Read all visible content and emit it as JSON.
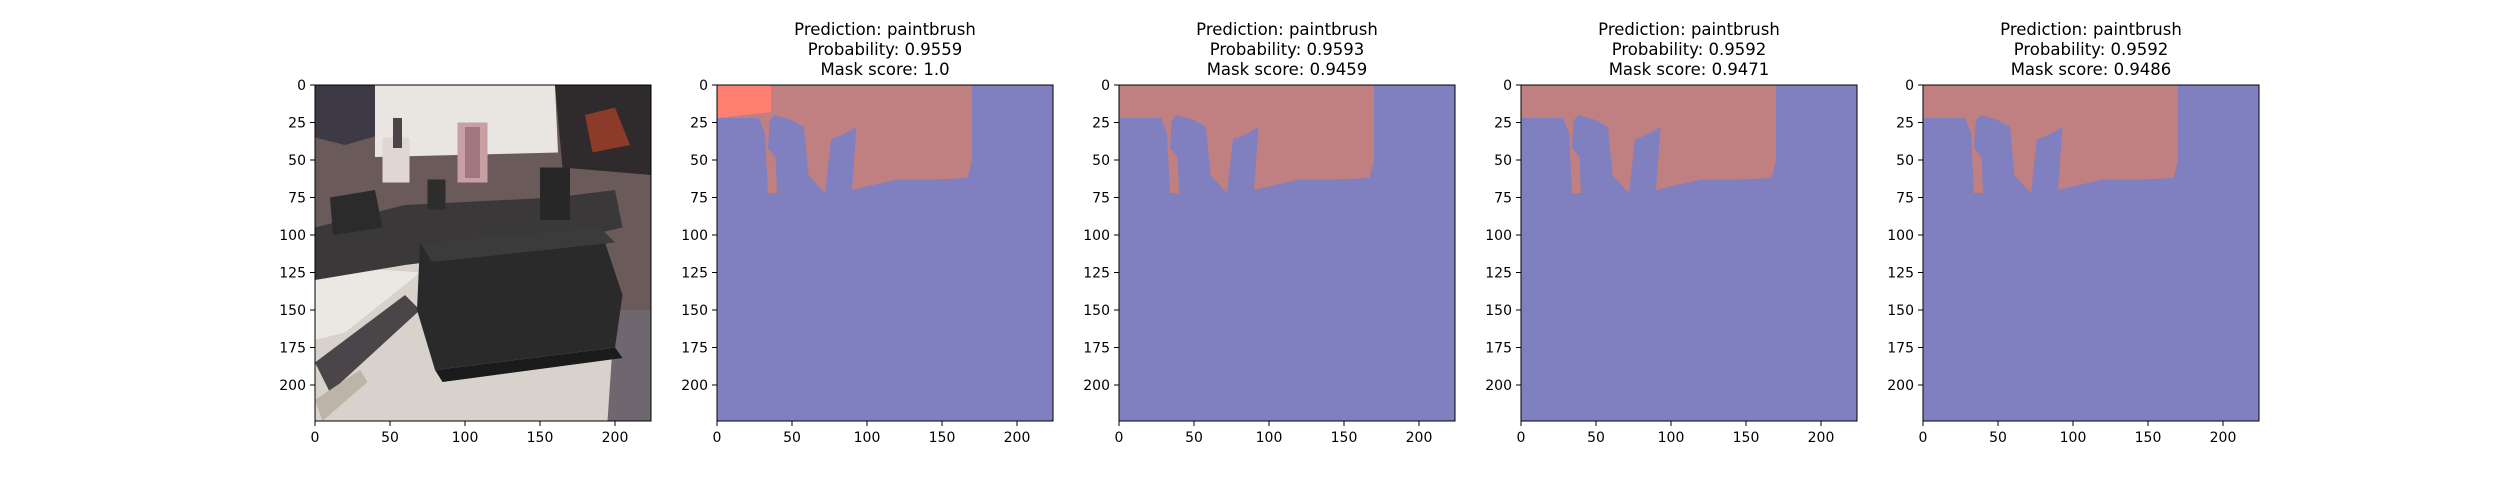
{
  "chart_data": [
    {
      "type": "image",
      "image_subject": "photo-model-train",
      "title_lines": [],
      "xlim": [
        0,
        224
      ],
      "ylim": [
        224,
        0
      ],
      "x_ticks": [
        0,
        50,
        100,
        150,
        200
      ],
      "y_ticks": [
        0,
        25,
        50,
        75,
        100,
        125,
        150,
        175,
        200
      ]
    },
    {
      "type": "heatmap",
      "title_lines": [
        "Prediction: paintbrush",
        "Probability: 0.9559",
        "Mask score: 1.0"
      ],
      "prediction": "paintbrush",
      "probability": 0.9559,
      "mask_score": 1.0,
      "xlim": [
        0,
        224
      ],
      "ylim": [
        224,
        0
      ],
      "x_ticks": [
        0,
        50,
        100,
        150,
        200
      ],
      "y_ticks": [
        0,
        25,
        50,
        75,
        100,
        125,
        150,
        175,
        200
      ],
      "background_color": "#8080c0",
      "mask_color": "#c07f80",
      "mask_region": [
        [
          0,
          0
        ],
        [
          170,
          0
        ],
        [
          170,
          50
        ],
        [
          167,
          62
        ],
        [
          145,
          63
        ],
        [
          120,
          63
        ],
        [
          98,
          68
        ],
        [
          90,
          70
        ],
        [
          93,
          28
        ],
        [
          82,
          34
        ],
        [
          76,
          36
        ],
        [
          72,
          72
        ],
        [
          68,
          68
        ],
        [
          61,
          60
        ],
        [
          58,
          28
        ],
        [
          49,
          23
        ],
        [
          38,
          20
        ],
        [
          35,
          24
        ],
        [
          34,
          42
        ],
        [
          39,
          48
        ],
        [
          40,
          72
        ],
        [
          34,
          72
        ],
        [
          32,
          32
        ],
        [
          28,
          22
        ],
        [
          0,
          22
        ]
      ],
      "highlight_color": "#ff8070",
      "highlight_region": [
        [
          0,
          0
        ],
        [
          36,
          0
        ],
        [
          36,
          18
        ],
        [
          0,
          22
        ]
      ]
    },
    {
      "type": "heatmap",
      "title_lines": [
        "Prediction: paintbrush",
        "Probability: 0.9593",
        "Mask score: 0.9459"
      ],
      "prediction": "paintbrush",
      "probability": 0.9593,
      "mask_score": 0.9459,
      "xlim": [
        0,
        224
      ],
      "ylim": [
        224,
        0
      ],
      "x_ticks": [
        0,
        50,
        100,
        150,
        200
      ],
      "y_ticks": [
        0,
        25,
        50,
        75,
        100,
        125,
        150,
        175,
        200
      ],
      "background_color": "#8080c0",
      "mask_color": "#c07f80",
      "mask_region": [
        [
          0,
          0
        ],
        [
          170,
          0
        ],
        [
          170,
          50
        ],
        [
          167,
          62
        ],
        [
          145,
          63
        ],
        [
          120,
          63
        ],
        [
          98,
          68
        ],
        [
          90,
          70
        ],
        [
          93,
          28
        ],
        [
          82,
          34
        ],
        [
          76,
          36
        ],
        [
          72,
          72
        ],
        [
          68,
          68
        ],
        [
          61,
          60
        ],
        [
          58,
          28
        ],
        [
          49,
          23
        ],
        [
          38,
          20
        ],
        [
          35,
          24
        ],
        [
          34,
          42
        ],
        [
          39,
          48
        ],
        [
          40,
          72
        ],
        [
          34,
          72
        ],
        [
          32,
          32
        ],
        [
          28,
          22
        ],
        [
          0,
          22
        ]
      ]
    },
    {
      "type": "heatmap",
      "title_lines": [
        "Prediction: paintbrush",
        "Probability: 0.9592",
        "Mask score: 0.9471"
      ],
      "prediction": "paintbrush",
      "probability": 0.9592,
      "mask_score": 0.9471,
      "xlim": [
        0,
        224
      ],
      "ylim": [
        224,
        0
      ],
      "x_ticks": [
        0,
        50,
        100,
        150,
        200
      ],
      "y_ticks": [
        0,
        25,
        50,
        75,
        100,
        125,
        150,
        175,
        200
      ],
      "background_color": "#8080c0",
      "mask_color": "#c07f80",
      "mask_region": [
        [
          0,
          0
        ],
        [
          170,
          0
        ],
        [
          170,
          50
        ],
        [
          167,
          62
        ],
        [
          145,
          63
        ],
        [
          120,
          63
        ],
        [
          98,
          68
        ],
        [
          90,
          70
        ],
        [
          93,
          28
        ],
        [
          82,
          34
        ],
        [
          76,
          36
        ],
        [
          72,
          72
        ],
        [
          68,
          68
        ],
        [
          61,
          60
        ],
        [
          58,
          28
        ],
        [
          49,
          23
        ],
        [
          38,
          20
        ],
        [
          35,
          24
        ],
        [
          34,
          42
        ],
        [
          39,
          48
        ],
        [
          40,
          72
        ],
        [
          34,
          72
        ],
        [
          32,
          32
        ],
        [
          28,
          22
        ],
        [
          0,
          22
        ]
      ]
    },
    {
      "type": "heatmap",
      "title_lines": [
        "Prediction: paintbrush",
        "Probability: 0.9592",
        "Mask score: 0.9486"
      ],
      "prediction": "paintbrush",
      "probability": 0.9592,
      "mask_score": 0.9486,
      "xlim": [
        0,
        224
      ],
      "ylim": [
        224,
        0
      ],
      "x_ticks": [
        0,
        50,
        100,
        150,
        200
      ],
      "y_ticks": [
        0,
        25,
        50,
        75,
        100,
        125,
        150,
        175,
        200
      ],
      "background_color": "#8080c0",
      "mask_color": "#c07f80",
      "mask_region": [
        [
          0,
          0
        ],
        [
          170,
          0
        ],
        [
          170,
          50
        ],
        [
          167,
          62
        ],
        [
          145,
          63
        ],
        [
          120,
          63
        ],
        [
          98,
          68
        ],
        [
          90,
          70
        ],
        [
          93,
          28
        ],
        [
          82,
          34
        ],
        [
          76,
          36
        ],
        [
          72,
          72
        ],
        [
          68,
          68
        ],
        [
          61,
          60
        ],
        [
          58,
          28
        ],
        [
          49,
          23
        ],
        [
          38,
          20
        ],
        [
          35,
          24
        ],
        [
          34,
          42
        ],
        [
          39,
          48
        ],
        [
          40,
          72
        ],
        [
          34,
          72
        ],
        [
          32,
          32
        ],
        [
          28,
          22
        ],
        [
          0,
          22
        ]
      ]
    }
  ]
}
